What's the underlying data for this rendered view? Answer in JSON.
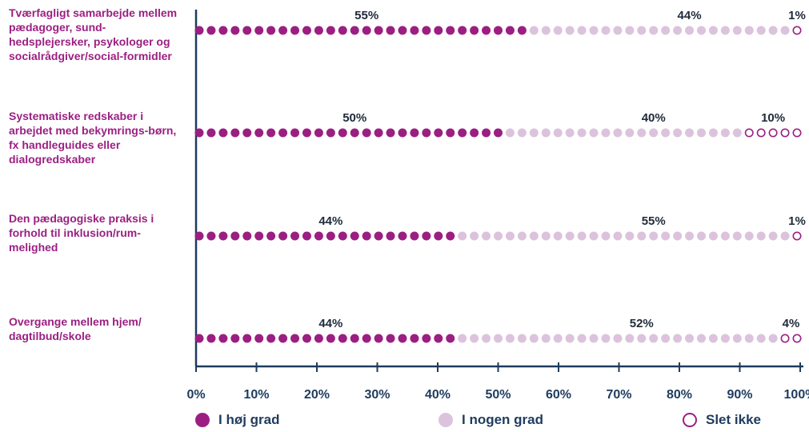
{
  "chart_data": {
    "type": "bar",
    "stacked": true,
    "orientation": "horizontal",
    "categories": [
      "Tværfagligt samarbejde mellem pædagoger, sund-hedsplejersker, psykologer og socialrådgiver/social-formidler",
      "Systematiske redskaber i arbejdet med bekymrings-børn, fx handleguides eller dialogredskaber",
      "Den pædagogiske  praksis i forhold til inklusion/rum-melighed",
      "Overgange mellem hjem/ dagtilbud/skole"
    ],
    "series": [
      {
        "name": "I høj grad",
        "values": [
          55,
          50,
          44,
          44
        ],
        "labels": [
          "55%",
          "50%",
          "44%",
          "44%"
        ],
        "color": "#9b1f82"
      },
      {
        "name": "I nogen grad",
        "values": [
          44,
          40,
          55,
          52
        ],
        "labels": [
          "44%",
          "40%",
          "55%",
          "52%"
        ],
        "color": "#dcc3dd"
      },
      {
        "name": "Slet ikke",
        "values": [
          1,
          10,
          1,
          4
        ],
        "labels": [
          "1%",
          "10%",
          "1%",
          "4%"
        ],
        "color": "#9b1f82"
      }
    ],
    "x_ticks": [
      "0%",
      "10%",
      "20%",
      "30%",
      "40%",
      "50%",
      "60%",
      "70%",
      "80%",
      "90%",
      "100%"
    ],
    "xlim": [
      0,
      100
    ],
    "legend_position": "bottom"
  },
  "colors": {
    "axis": "#1f3b5e",
    "high": "#9b1f82",
    "some": "#dcc3dd",
    "none_outline": "#9b1f82",
    "label_text": "#9b1f82",
    "value_text": "#1f2a3a"
  }
}
